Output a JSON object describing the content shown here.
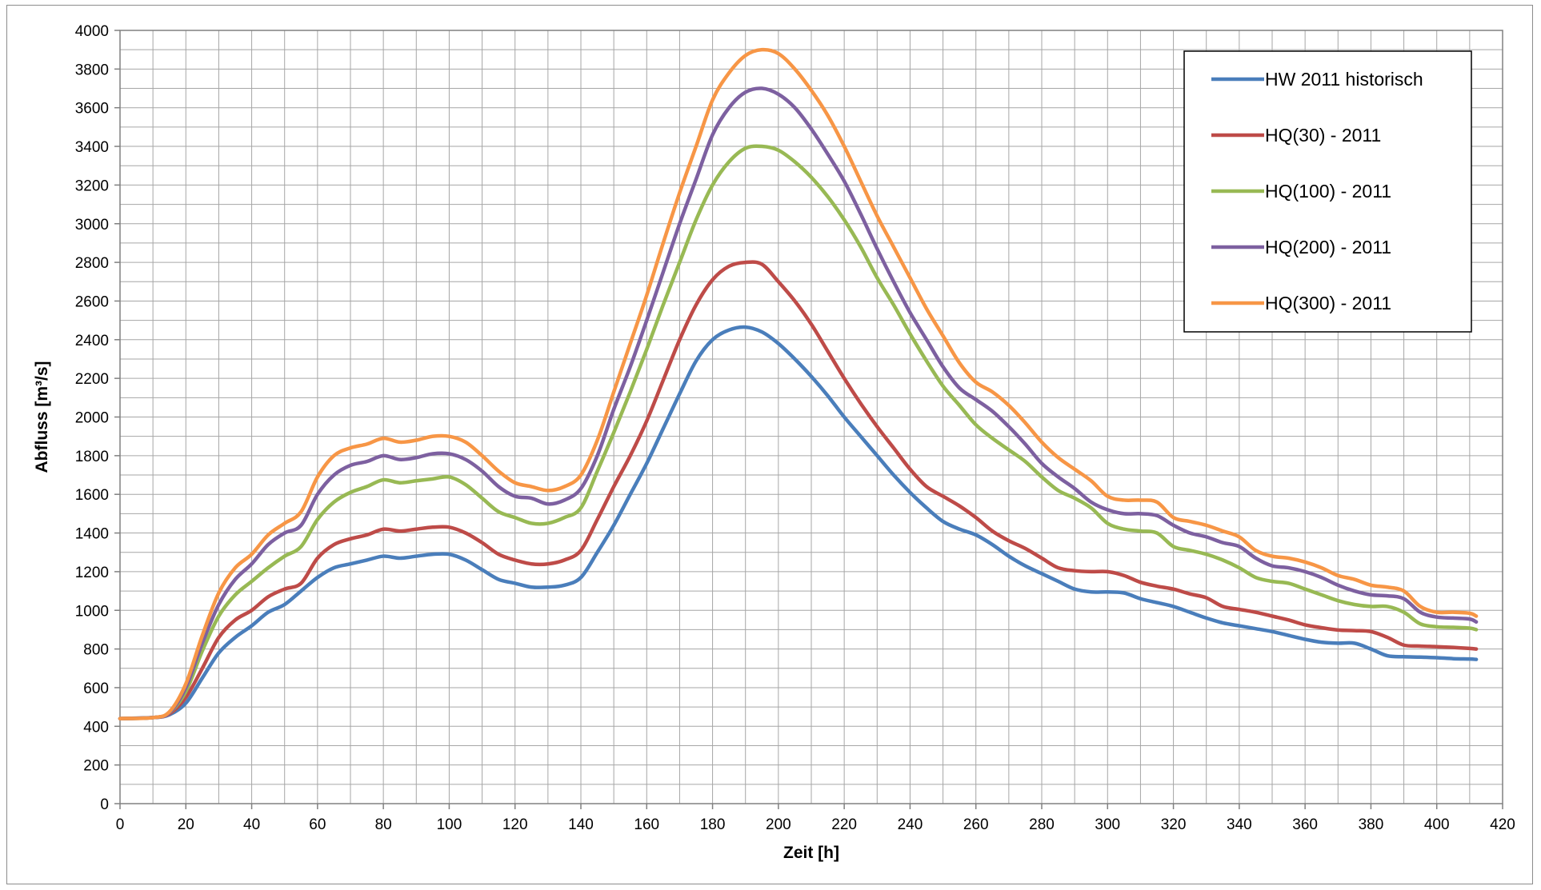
{
  "chart_data": {
    "type": "line",
    "title": "",
    "xlabel": "Zeit [h]",
    "ylabel": "Abfluss [m³/s]",
    "xlim": [
      0,
      420
    ],
    "ylim": [
      0,
      4000
    ],
    "x_ticks": [
      "0",
      "20",
      "40",
      "60",
      "80",
      "100",
      "120",
      "140",
      "160",
      "180",
      "200",
      "220",
      "240",
      "260",
      "280",
      "300",
      "320",
      "340",
      "360",
      "380",
      "400",
      "420"
    ],
    "y_ticks": [
      "0",
      "200",
      "400",
      "600",
      "800",
      "1000",
      "1200",
      "1400",
      "1600",
      "1800",
      "2000",
      "2200",
      "2400",
      "2600",
      "2800",
      "3000",
      "3200",
      "3400",
      "3600",
      "3800",
      "4000"
    ],
    "grid": true,
    "legend_position": "top-right",
    "x": [
      0,
      10,
      15,
      20,
      25,
      30,
      35,
      40,
      45,
      50,
      55,
      60,
      65,
      70,
      75,
      80,
      85,
      90,
      95,
      100,
      105,
      110,
      115,
      120,
      125,
      130,
      135,
      140,
      145,
      150,
      155,
      160,
      165,
      170,
      175,
      180,
      185,
      190,
      195,
      200,
      205,
      210,
      215,
      220,
      225,
      230,
      235,
      240,
      245,
      250,
      255,
      260,
      265,
      270,
      275,
      280,
      285,
      290,
      295,
      300,
      305,
      310,
      315,
      320,
      325,
      330,
      335,
      340,
      345,
      350,
      355,
      360,
      365,
      370,
      375,
      380,
      385,
      390,
      395,
      400,
      405,
      410,
      412
    ],
    "series": [
      {
        "name": "HW 2011 historisch",
        "color": "#4a7ebb",
        "values": [
          440,
          445,
          460,
          520,
          650,
          780,
          860,
          920,
          990,
          1030,
          1100,
          1170,
          1220,
          1240,
          1260,
          1280,
          1270,
          1280,
          1290,
          1290,
          1260,
          1210,
          1160,
          1140,
          1120,
          1120,
          1130,
          1170,
          1300,
          1440,
          1600,
          1760,
          1940,
          2120,
          2290,
          2400,
          2450,
          2465,
          2440,
          2380,
          2300,
          2210,
          2110,
          2000,
          1900,
          1800,
          1700,
          1610,
          1530,
          1460,
          1420,
          1390,
          1340,
          1280,
          1230,
          1190,
          1150,
          1110,
          1095,
          1095,
          1090,
          1060,
          1040,
          1020,
          990,
          960,
          935,
          920,
          905,
          890,
          870,
          850,
          835,
          830,
          830,
          800,
          765,
          760,
          758,
          755,
          750,
          748,
          746
        ]
      },
      {
        "name": "HQ(30) - 2011",
        "color": "#be4b48",
        "values": [
          440,
          445,
          465,
          550,
          700,
          860,
          950,
          1000,
          1070,
          1110,
          1140,
          1270,
          1340,
          1370,
          1390,
          1420,
          1410,
          1420,
          1430,
          1430,
          1400,
          1350,
          1290,
          1260,
          1240,
          1240,
          1260,
          1310,
          1470,
          1640,
          1800,
          1980,
          2190,
          2400,
          2580,
          2710,
          2780,
          2800,
          2790,
          2700,
          2600,
          2480,
          2340,
          2200,
          2070,
          1950,
          1840,
          1730,
          1640,
          1590,
          1540,
          1480,
          1410,
          1360,
          1320,
          1270,
          1220,
          1205,
          1200,
          1200,
          1180,
          1145,
          1125,
          1110,
          1085,
          1065,
          1020,
          1005,
          990,
          970,
          950,
          925,
          910,
          898,
          895,
          890,
          860,
          820,
          815,
          812,
          808,
          803,
          800
        ]
      },
      {
        "name": "HQ(100) - 2011",
        "color": "#98b954",
        "values": [
          440,
          445,
          470,
          580,
          790,
          970,
          1080,
          1150,
          1220,
          1280,
          1330,
          1470,
          1560,
          1610,
          1640,
          1675,
          1660,
          1670,
          1680,
          1690,
          1650,
          1580,
          1510,
          1480,
          1450,
          1450,
          1480,
          1530,
          1720,
          1920,
          2130,
          2350,
          2580,
          2800,
          3020,
          3200,
          3320,
          3390,
          3400,
          3380,
          3320,
          3240,
          3140,
          3020,
          2880,
          2720,
          2580,
          2430,
          2290,
          2160,
          2060,
          1960,
          1890,
          1830,
          1770,
          1690,
          1620,
          1580,
          1530,
          1450,
          1420,
          1410,
          1400,
          1330,
          1310,
          1290,
          1260,
          1220,
          1170,
          1150,
          1140,
          1110,
          1080,
          1050,
          1030,
          1020,
          1020,
          990,
          930,
          915,
          912,
          908,
          900
        ]
      },
      {
        "name": "HQ(200) - 2011",
        "color": "#7d60a0",
        "values": [
          440,
          445,
          470,
          600,
          830,
          1030,
          1160,
          1240,
          1340,
          1400,
          1440,
          1600,
          1700,
          1750,
          1770,
          1800,
          1780,
          1790,
          1810,
          1810,
          1780,
          1720,
          1640,
          1590,
          1580,
          1550,
          1570,
          1630,
          1800,
          2040,
          2260,
          2500,
          2750,
          3000,
          3230,
          3460,
          3600,
          3680,
          3700,
          3670,
          3600,
          3490,
          3360,
          3220,
          3050,
          2870,
          2700,
          2540,
          2400,
          2260,
          2150,
          2090,
          2030,
          1950,
          1860,
          1760,
          1690,
          1630,
          1560,
          1520,
          1500,
          1500,
          1490,
          1440,
          1400,
          1380,
          1350,
          1330,
          1270,
          1230,
          1220,
          1200,
          1170,
          1130,
          1100,
          1080,
          1075,
          1060,
          990,
          965,
          960,
          955,
          940
        ]
      },
      {
        "name": "HQ(300) - 2011",
        "color": "#f79646",
        "values": [
          440,
          445,
          475,
          620,
          870,
          1090,
          1220,
          1290,
          1390,
          1450,
          1510,
          1690,
          1800,
          1840,
          1860,
          1890,
          1870,
          1880,
          1900,
          1900,
          1870,
          1800,
          1720,
          1660,
          1640,
          1620,
          1640,
          1700,
          1880,
          2130,
          2380,
          2630,
          2900,
          3160,
          3400,
          3640,
          3780,
          3870,
          3900,
          3880,
          3800,
          3690,
          3560,
          3400,
          3220,
          3040,
          2880,
          2720,
          2560,
          2420,
          2280,
          2180,
          2130,
          2060,
          1970,
          1870,
          1790,
          1730,
          1670,
          1590,
          1570,
          1570,
          1560,
          1480,
          1460,
          1440,
          1410,
          1380,
          1310,
          1280,
          1270,
          1250,
          1220,
          1180,
          1160,
          1130,
          1120,
          1100,
          1020,
          990,
          990,
          985,
          970
        ]
      }
    ]
  }
}
